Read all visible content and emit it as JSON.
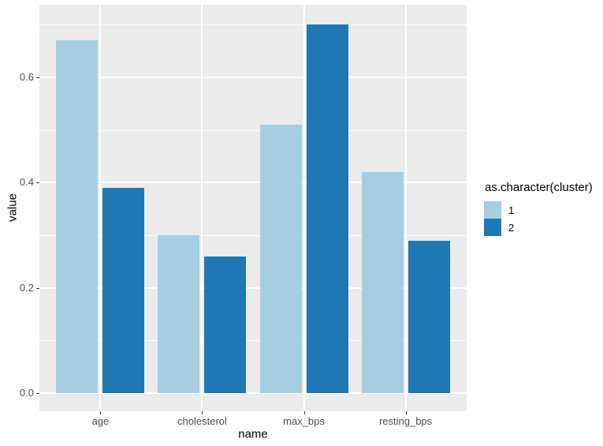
{
  "chart_data": {
    "type": "bar",
    "categories": [
      "age",
      "cholesterol",
      "max_bps",
      "resting_bps"
    ],
    "series": [
      {
        "name": "1",
        "color": "#A6CEE3",
        "values": [
          0.67,
          0.3,
          0.51,
          0.42
        ]
      },
      {
        "name": "2",
        "color": "#1F77B4",
        "values": [
          0.39,
          0.26,
          0.7,
          0.29
        ]
      }
    ],
    "title": "",
    "xlabel": "name",
    "ylabel": "value",
    "ylim": [
      -0.035,
      0.738
    ],
    "yticks": [
      {
        "value": 0.0,
        "label": "0.0"
      },
      {
        "value": 0.2,
        "label": "0.2"
      },
      {
        "value": 0.4,
        "label": "0.4"
      },
      {
        "value": 0.6,
        "label": "0.6"
      }
    ],
    "y_minor_gridlines": [
      0.1,
      0.3,
      0.5,
      0.7
    ],
    "grid": "on",
    "legend_position": "right"
  },
  "legend": {
    "title": "as.character(cluster)",
    "entries": [
      {
        "label": "1",
        "color": "#A6CEE3"
      },
      {
        "label": "2",
        "color": "#1F77B4"
      }
    ]
  },
  "colors": {
    "background": "#FFFFFF",
    "panel_background": "#EBEBEB",
    "gridline": "#FFFFFF",
    "axis_text": "#4D4D4D",
    "axis_title": "#000000",
    "tick_mark": "#333333"
  }
}
